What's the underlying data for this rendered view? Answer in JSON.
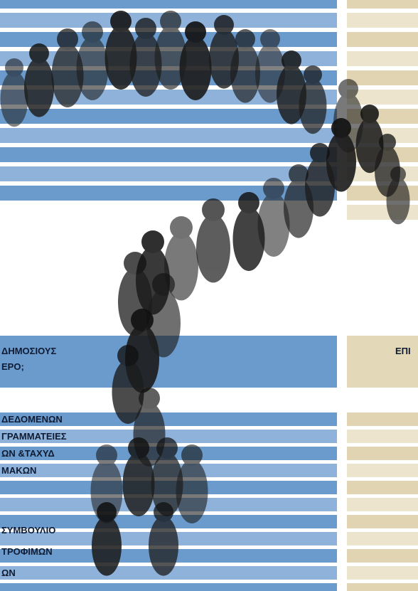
{
  "header": {
    "question_lines": [
      "ΔΗΜΟΣΙΟΥΣ",
      "ΕΡΟ;"
    ],
    "right_heading": "ΕΠΙ"
  },
  "list": {
    "items": [
      "ΔΕΔΟΜΕΝΩΝ",
      "ΓΡΑΜΜΑΤΕΙΕΣ",
      "ΩΝ &ΤΑΧΥΔ",
      "ΜΑΚΩΝ",
      "ΣΥΜΒΟΥΛΙΟ",
      "ΤΡΟΦΙΜΩΝ",
      "ΩΝ"
    ]
  }
}
